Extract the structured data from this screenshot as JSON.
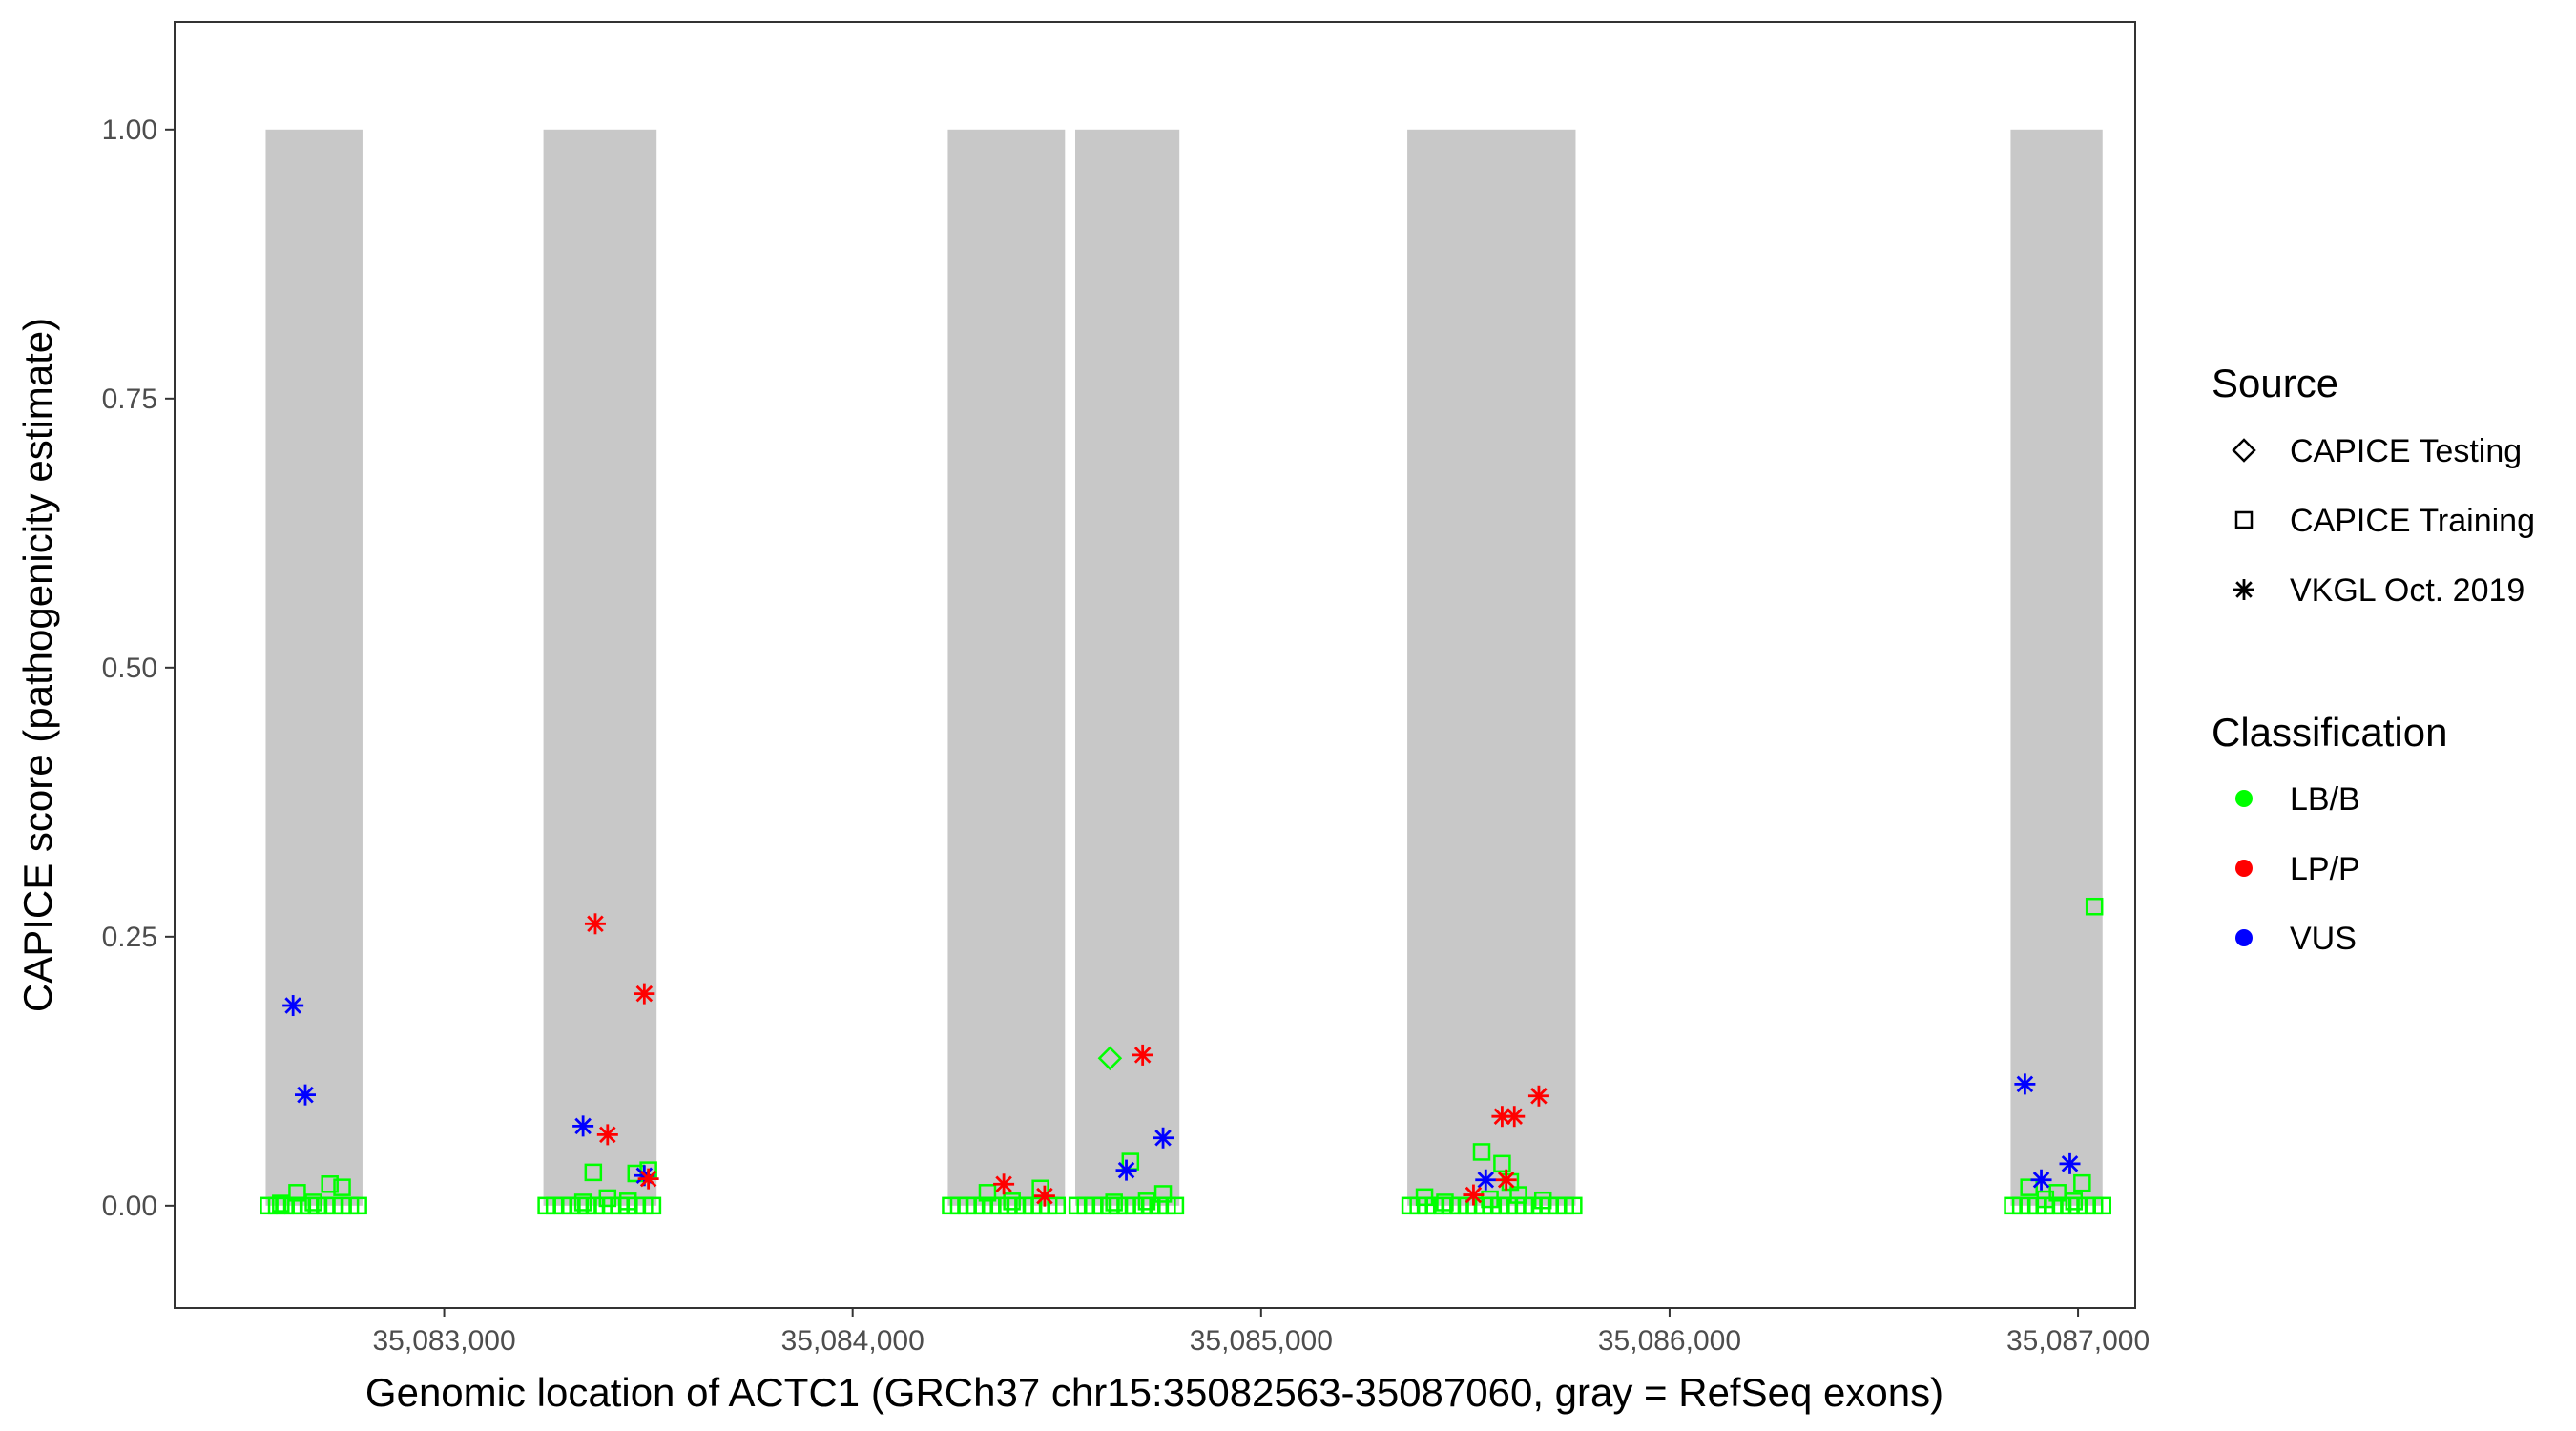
{
  "chart_data": {
    "type": "scatter",
    "title": "",
    "xlabel": "Genomic location of ACTC1 (GRCh37 chr15:35082563-35087060, gray = RefSeq exons)",
    "ylabel": "CAPICE score (pathogenicity estimate)",
    "xlim": [
      35082340,
      35087140
    ],
    "ylim": [
      -0.095,
      1.1
    ],
    "x_ticks": [
      35083000,
      35084000,
      35085000,
      35086000,
      35087000
    ],
    "x_tick_labels": [
      "35,083,000",
      "35,084,000",
      "35,085,000",
      "35,086,000",
      "35,087,000"
    ],
    "y_ticks": [
      0,
      0.25,
      0.5,
      0.75,
      1.0
    ],
    "y_tick_labels": [
      "0.00",
      "0.25",
      "0.50",
      "0.75",
      "1.00"
    ],
    "grid": false,
    "exons": [
      {
        "start": 35082563,
        "end": 35082800
      },
      {
        "start": 35083243,
        "end": 35083520
      },
      {
        "start": 35084233,
        "end": 35084520
      },
      {
        "start": 35084545,
        "end": 35084800
      },
      {
        "start": 35085358,
        "end": 35085770
      },
      {
        "start": 35086835,
        "end": 35087060
      }
    ],
    "colors": {
      "LB/B": "#00ff00",
      "LP/P": "#ff0000",
      "VUS": "#0000ff",
      "exon": "#c8c8c8"
    },
    "legend": {
      "placement": "right",
      "source_title": "Source",
      "source_items": [
        {
          "label": "CAPICE Testing",
          "shape": "diamond"
        },
        {
          "label": "CAPICE Training",
          "shape": "square"
        },
        {
          "label": "VKGL Oct. 2019",
          "shape": "asterisk"
        }
      ],
      "class_title": "Classification",
      "class_items": [
        {
          "label": "LB/B",
          "color": "#00ff00"
        },
        {
          "label": "LP/P",
          "color": "#ff0000"
        },
        {
          "label": "VUS",
          "color": "#0000ff"
        }
      ]
    },
    "series": [
      {
        "source": "VKGL Oct. 2019",
        "classification": "VUS",
        "points": [
          [
            35082630,
            0.186
          ],
          [
            35082660,
            0.103
          ],
          [
            35083340,
            0.074
          ],
          [
            35083490,
            0.028
          ],
          [
            35084670,
            0.033
          ],
          [
            35084760,
            0.063
          ],
          [
            35085550,
            0.024
          ],
          [
            35086870,
            0.113
          ],
          [
            35086910,
            0.024
          ],
          [
            35086980,
            0.039
          ]
        ]
      },
      {
        "source": "VKGL Oct. 2019",
        "classification": "LP/P",
        "points": [
          [
            35083370,
            0.262
          ],
          [
            35083400,
            0.066
          ],
          [
            35083490,
            0.197
          ],
          [
            35083500,
            0.025
          ],
          [
            35084370,
            0.02
          ],
          [
            35084470,
            0.009
          ],
          [
            35084710,
            0.14
          ],
          [
            35085520,
            0.01
          ],
          [
            35085590,
            0.083
          ],
          [
            35085620,
            0.083
          ],
          [
            35085680,
            0.102
          ],
          [
            35085600,
            0.024
          ]
        ]
      },
      {
        "source": "CAPICE Testing",
        "classification": "LB/B",
        "points": [
          [
            35084630,
            0.137
          ]
        ]
      },
      {
        "source": "CAPICE Training",
        "classification": "LB/B",
        "points": [
          [
            35082570,
            0.0
          ],
          [
            35082590,
            0.0
          ],
          [
            35082610,
            0.0
          ],
          [
            35082630,
            0.0
          ],
          [
            35082650,
            0.0
          ],
          [
            35082670,
            0.0
          ],
          [
            35082690,
            0.0
          ],
          [
            35082710,
            0.0
          ],
          [
            35082730,
            0.0
          ],
          [
            35082750,
            0.0
          ],
          [
            35082770,
            0.0
          ],
          [
            35082790,
            0.0
          ],
          [
            35082640,
            0.012
          ],
          [
            35082720,
            0.02
          ],
          [
            35082750,
            0.017
          ],
          [
            35082680,
            0.003
          ],
          [
            35082600,
            0.002
          ],
          [
            35083250,
            0.0
          ],
          [
            35083270,
            0.0
          ],
          [
            35083290,
            0.0
          ],
          [
            35083310,
            0.0
          ],
          [
            35083330,
            0.0
          ],
          [
            35083350,
            0.0
          ],
          [
            35083370,
            0.0
          ],
          [
            35083390,
            0.0
          ],
          [
            35083410,
            0.0
          ],
          [
            35083430,
            0.0
          ],
          [
            35083450,
            0.0
          ],
          [
            35083470,
            0.0
          ],
          [
            35083490,
            0.0
          ],
          [
            35083510,
            0.0
          ],
          [
            35083365,
            0.031
          ],
          [
            35083470,
            0.03
          ],
          [
            35083500,
            0.033
          ],
          [
            35083400,
            0.007
          ],
          [
            35083450,
            0.004
          ],
          [
            35083340,
            0.003
          ],
          [
            35084240,
            0.0
          ],
          [
            35084260,
            0.0
          ],
          [
            35084280,
            0.0
          ],
          [
            35084300,
            0.0
          ],
          [
            35084320,
            0.0
          ],
          [
            35084340,
            0.0
          ],
          [
            35084360,
            0.0
          ],
          [
            35084380,
            0.0
          ],
          [
            35084400,
            0.0
          ],
          [
            35084420,
            0.0
          ],
          [
            35084440,
            0.0
          ],
          [
            35084460,
            0.0
          ],
          [
            35084480,
            0.0
          ],
          [
            35084500,
            0.0
          ],
          [
            35084330,
            0.012
          ],
          [
            35084460,
            0.016
          ],
          [
            35084390,
            0.004
          ],
          [
            35084550,
            0.0
          ],
          [
            35084570,
            0.0
          ],
          [
            35084590,
            0.0
          ],
          [
            35084610,
            0.0
          ],
          [
            35084630,
            0.0
          ],
          [
            35084650,
            0.0
          ],
          [
            35084670,
            0.0
          ],
          [
            35084690,
            0.0
          ],
          [
            35084710,
            0.0
          ],
          [
            35084730,
            0.0
          ],
          [
            35084750,
            0.0
          ],
          [
            35084770,
            0.0
          ],
          [
            35084790,
            0.0
          ],
          [
            35084680,
            0.041
          ],
          [
            35084760,
            0.011
          ],
          [
            35084640,
            0.003
          ],
          [
            35084720,
            0.004
          ],
          [
            35085365,
            0.0
          ],
          [
            35085385,
            0.0
          ],
          [
            35085405,
            0.0
          ],
          [
            35085425,
            0.0
          ],
          [
            35085445,
            0.0
          ],
          [
            35085465,
            0.0
          ],
          [
            35085485,
            0.0
          ],
          [
            35085505,
            0.0
          ],
          [
            35085525,
            0.0
          ],
          [
            35085545,
            0.0
          ],
          [
            35085565,
            0.0
          ],
          [
            35085585,
            0.0
          ],
          [
            35085605,
            0.0
          ],
          [
            35085625,
            0.0
          ],
          [
            35085645,
            0.0
          ],
          [
            35085665,
            0.0
          ],
          [
            35085685,
            0.0
          ],
          [
            35085705,
            0.0
          ],
          [
            35085725,
            0.0
          ],
          [
            35085745,
            0.0
          ],
          [
            35085765,
            0.0
          ],
          [
            35085540,
            0.05
          ],
          [
            35085590,
            0.039
          ],
          [
            35085400,
            0.008
          ],
          [
            35085610,
            0.022
          ],
          [
            35085630,
            0.01
          ],
          [
            35085690,
            0.005
          ],
          [
            35085450,
            0.003
          ],
          [
            35085560,
            0.006
          ],
          [
            35086840,
            0.0
          ],
          [
            35086860,
            0.0
          ],
          [
            35086880,
            0.0
          ],
          [
            35086900,
            0.0
          ],
          [
            35086920,
            0.0
          ],
          [
            35086940,
            0.0
          ],
          [
            35086960,
            0.0
          ],
          [
            35086980,
            0.0
          ],
          [
            35087000,
            0.0
          ],
          [
            35087020,
            0.0
          ],
          [
            35087040,
            0.0
          ],
          [
            35087060,
            0.0
          ],
          [
            35087040,
            0.278
          ],
          [
            35087010,
            0.021
          ],
          [
            35086880,
            0.017
          ],
          [
            35086950,
            0.012
          ],
          [
            35086920,
            0.006
          ],
          [
            35086990,
            0.004
          ]
        ]
      }
    ]
  }
}
